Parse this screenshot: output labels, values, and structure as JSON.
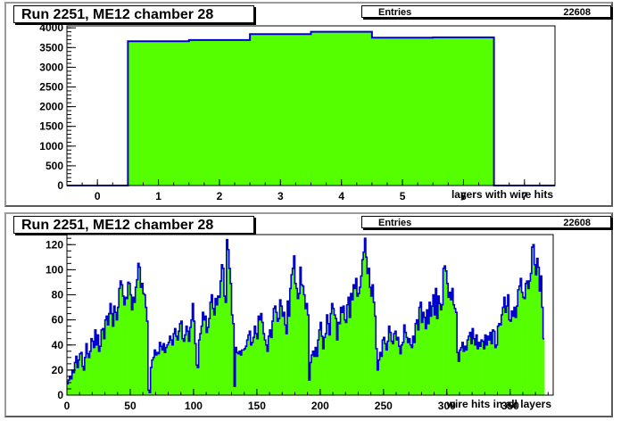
{
  "colors": {
    "fill": "#55ff00",
    "line": "#0000cc",
    "axis": "#000000"
  },
  "chart_data": [
    {
      "type": "bar",
      "title": "Run 2251, ME12 chamber 28",
      "stats": {
        "label": "Entries",
        "value": "22608"
      },
      "xlabel": "layers with wire hits",
      "ylabel": "",
      "xlim": [
        -0.5,
        7.5
      ],
      "ylim": [
        0,
        4050
      ],
      "xticks": [
        "0",
        "1",
        "2",
        "3",
        "4",
        "5",
        "6",
        "7"
      ],
      "yticks": [
        "0",
        "500",
        "1000",
        "1500",
        "2000",
        "2500",
        "3000",
        "3500",
        "4000"
      ],
      "bin_edges_start": -0.5,
      "bin_width": 1,
      "values": [
        0,
        3660,
        3690,
        3840,
        3900,
        3750,
        3760,
        0
      ]
    },
    {
      "type": "bar",
      "title": "Run 2251, ME12 chamber 28",
      "stats": {
        "label": "Entries",
        "value": "22608"
      },
      "xlabel": "wire hits in all layers",
      "ylabel": "",
      "xlim": [
        0,
        384
      ],
      "ylim": [
        0,
        128
      ],
      "xticks": [
        "0",
        "50",
        "100",
        "150",
        "200",
        "250",
        "300",
        "350"
      ],
      "yticks": [
        "0",
        "20",
        "40",
        "60",
        "80",
        "100",
        "120"
      ],
      "bin_edges_start": 0,
      "bin_width": 1,
      "values": [
        9,
        12,
        15,
        13,
        20,
        18,
        26,
        31,
        22,
        28,
        33,
        34,
        23,
        20,
        30,
        41,
        33,
        30,
        35,
        45,
        43,
        38,
        52,
        40,
        48,
        35,
        39,
        52,
        53,
        45,
        60,
        63,
        56,
        65,
        73,
        65,
        55,
        71,
        66,
        60,
        70,
        85,
        91,
        88,
        79,
        72,
        78,
        77,
        90,
        89,
        80,
        68,
        78,
        74,
        86,
        92,
        105,
        102,
        86,
        89,
        81,
        80,
        70,
        59,
        4,
        2,
        22,
        28,
        30,
        36,
        32,
        34,
        33,
        42,
        39,
        36,
        41,
        34,
        38,
        40,
        42,
        47,
        44,
        40,
        49,
        53,
        47,
        44,
        51,
        57,
        59,
        45,
        43,
        48,
        55,
        51,
        43,
        54,
        60,
        73,
        59,
        41,
        24,
        22,
        44,
        49,
        55,
        66,
        60,
        63,
        50,
        54,
        61,
        74,
        80,
        69,
        64,
        77,
        72,
        79,
        78,
        91,
        104,
        101,
        79,
        74,
        124,
        116,
        101,
        89,
        64,
        57,
        7,
        38,
        34,
        33,
        35,
        32,
        36,
        36,
        37,
        39,
        44,
        48,
        51,
        40,
        42,
        46,
        55,
        49,
        45,
        63,
        60,
        65,
        58,
        49,
        44,
        40,
        35,
        47,
        52,
        46,
        59,
        69,
        71,
        66,
        59,
        61,
        76,
        71,
        63,
        66,
        56,
        49,
        75,
        63,
        85,
        96,
        101,
        111,
        89,
        85,
        77,
        81,
        102,
        88,
        87,
        80,
        69,
        73,
        64,
        12,
        26,
        32,
        35,
        31,
        38,
        31,
        44,
        52,
        58,
        47,
        37,
        46,
        49,
        64,
        57,
        48,
        65,
        73,
        69,
        64,
        61,
        44,
        58,
        57,
        70,
        66,
        71,
        60,
        58,
        72,
        78,
        62,
        81,
        76,
        88,
        85,
        93,
        79,
        81,
        86,
        95,
        108,
        114,
        125,
        110,
        97,
        101,
        86,
        79,
        88,
        74,
        63,
        37,
        20,
        28,
        34,
        31,
        44,
        46,
        41,
        36,
        43,
        55,
        50,
        43,
        41,
        49,
        51,
        44,
        46,
        39,
        33,
        40,
        42,
        56,
        50,
        46,
        42,
        45,
        40,
        38,
        47,
        42,
        57,
        60,
        52,
        70,
        74,
        58,
        66,
        62,
        53,
        68,
        57,
        74,
        63,
        71,
        80,
        64,
        85,
        61,
        79,
        73,
        68,
        72,
        101,
        103,
        99,
        89,
        78,
        82,
        76,
        85,
        72,
        69,
        66,
        34,
        27,
        36,
        38,
        42,
        35,
        39,
        36,
        44,
        47,
        50,
        41,
        53,
        45,
        40,
        48,
        37,
        42,
        39,
        44,
        43,
        37,
        48,
        40,
        47,
        44,
        50,
        41,
        52,
        51,
        38,
        40,
        55,
        57,
        56,
        64,
        70,
        78,
        66,
        71,
        80,
        60,
        59,
        67,
        63,
        70,
        62,
        71,
        84,
        87,
        93,
        82,
        78,
        77,
        89,
        91,
        85,
        91,
        97,
        118,
        120,
        104,
        96,
        109,
        102,
        83,
        95,
        70,
        45
      ]
    }
  ]
}
